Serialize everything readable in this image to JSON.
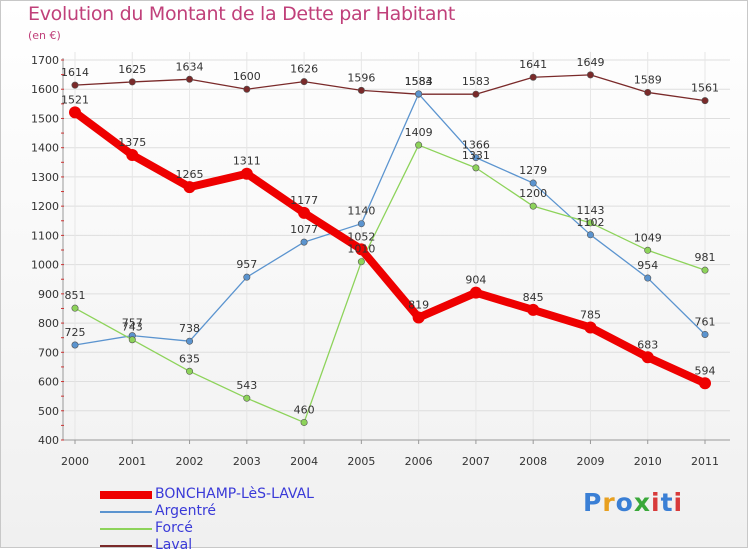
{
  "header": {
    "title": "Evolution du Montant de la Dette par Habitant",
    "subtitle": "(en €)"
  },
  "logo": {
    "text": "Proxiti",
    "colors": [
      "#3a7fd5",
      "#e8a020",
      "#3aa83a",
      "#d83a3a"
    ]
  },
  "chart_data": {
    "type": "line",
    "title": "Evolution du Montant de la Dette par Habitant",
    "subtitle": "(en €)",
    "xlabel": "",
    "ylabel": "",
    "x": [
      "2000",
      "2001",
      "2002",
      "2003",
      "2004",
      "2005",
      "2006",
      "2007",
      "2008",
      "2009",
      "2010",
      "2011"
    ],
    "ylim": [
      400,
      1700
    ],
    "yticks": [
      400,
      500,
      600,
      700,
      800,
      900,
      1000,
      1100,
      1200,
      1300,
      1400,
      1500,
      1600,
      1700
    ],
    "grid": true,
    "legend_position": "bottom-left",
    "series": [
      {
        "name": "BONCHAMP-LèS-LAVAL",
        "color": "#ee0000",
        "values": [
          1521,
          1375,
          1265,
          1311,
          1177,
          1052,
          819,
          904,
          845,
          785,
          683,
          594
        ]
      },
      {
        "name": "Argentré",
        "color": "#5b94cf",
        "values": [
          725,
          757,
          738,
          957,
          1077,
          1140,
          1584,
          1366,
          1279,
          1102,
          954,
          761
        ]
      },
      {
        "name": "Forcé",
        "color": "#8dd35a",
        "values": [
          851,
          743,
          635,
          543,
          460,
          1010,
          1409,
          1331,
          1200,
          1143,
          1049,
          981
        ]
      },
      {
        "name": "Laval",
        "color": "#7a2a2a",
        "values": [
          1614,
          1625,
          1634,
          1600,
          1626,
          1596,
          1583,
          1583,
          1641,
          1649,
          1589,
          1561
        ]
      }
    ]
  }
}
